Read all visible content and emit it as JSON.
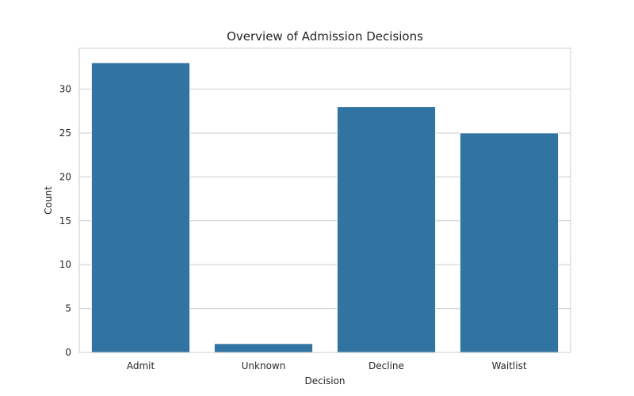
{
  "chart_data": {
    "type": "bar",
    "title": "Overview of Admission Decisions",
    "xlabel": "Decision",
    "ylabel": "Count",
    "categories": [
      "Admit",
      "Unknown",
      "Decline",
      "Waitlist"
    ],
    "values": [
      33,
      1,
      28,
      25
    ],
    "ylim": [
      0,
      34.65
    ],
    "yticks": [
      0,
      5,
      10,
      15,
      20,
      25,
      30
    ],
    "grid": true,
    "legend": "none",
    "bar_color": "#3274a1"
  }
}
